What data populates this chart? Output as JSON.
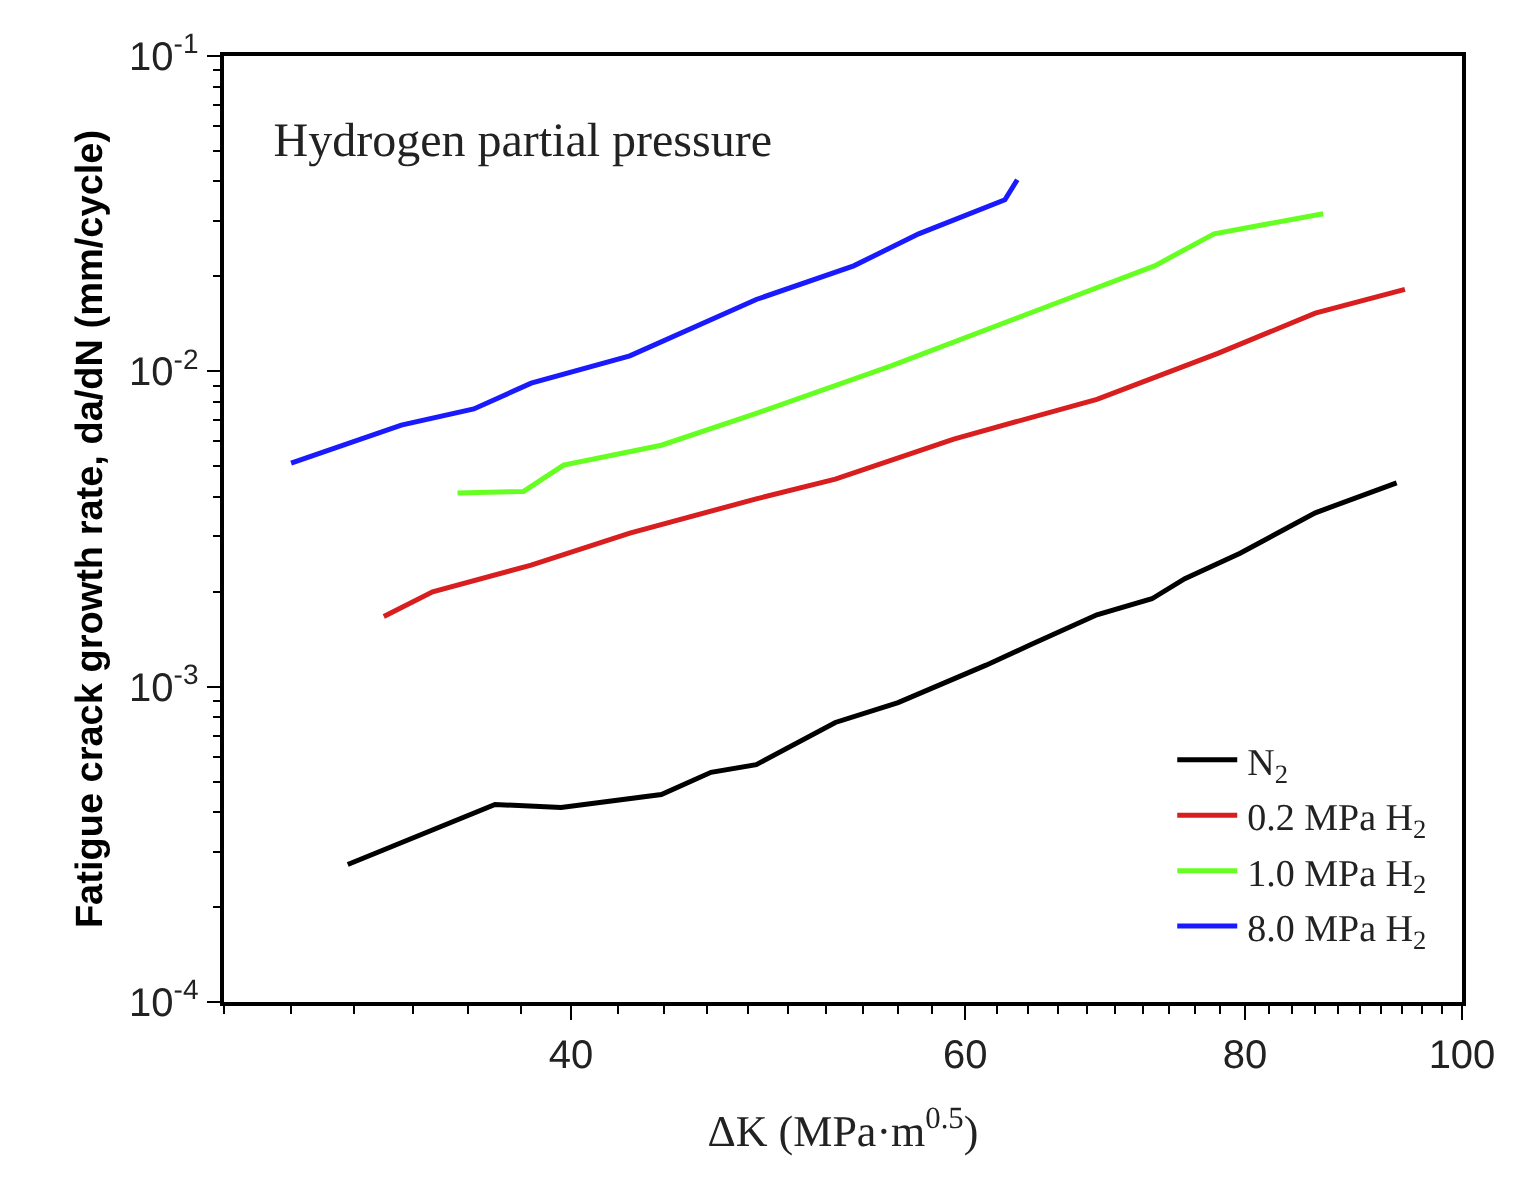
{
  "chart_data": {
    "type": "line",
    "title": "Hydrogen partial pressure",
    "xlabel": "ΔK (MPa·m$^{0.5}$)",
    "ylabel": "Fatigue crack growth rate, da/dN (mm/cycle)",
    "log": "xy",
    "xlim": [
      28,
      100
    ],
    "xticks": [
      40,
      60,
      80,
      100
    ],
    "ylim": [
      0.0001,
      0.1
    ],
    "yticks": [
      {
        "value": 0.0001,
        "label": "10$^{-4}$"
      },
      {
        "value": 0.001,
        "label": "10$^{-3}$"
      },
      {
        "value": 0.01,
        "label": "10$^{-2}$"
      },
      {
        "value": 0.1,
        "label": "10$^{-1}$"
      }
    ],
    "grid": false,
    "legend": "bottom right",
    "marker": "none",
    "line_style": "solid",
    "series": [
      {
        "name": "N$_{2}$",
        "color": "#000000",
        "x": [
          31.8,
          37.0,
          39.6,
          43.9,
          46.2,
          48.4,
          52.5,
          56.0,
          61.3,
          64.2,
          68.7,
          72.7,
          75.2,
          79.6,
          86.0,
          93.5
        ],
        "values": [
          0.000273,
          0.000423,
          0.000414,
          0.000455,
          0.000535,
          0.000566,
          0.00077,
          0.00089,
          0.00117,
          0.00136,
          0.00169,
          0.0019,
          0.0022,
          0.00265,
          0.00356,
          0.00443
        ]
      },
      {
        "name": "0.2 MPa H$_{2}$",
        "color": "#d81e1e",
        "x": [
          33.0,
          34.7,
          38.4,
          42.5,
          48.4,
          52.5,
          59.3,
          68.7,
          77.8,
          86.0,
          94.3
        ],
        "values": [
          0.00167,
          0.002,
          0.00243,
          0.00307,
          0.00394,
          0.00455,
          0.0061,
          0.00815,
          0.0114,
          0.0153,
          0.0182
        ]
      },
      {
        "name": "1.0 MPa H$_{2}$",
        "color": "#66ff22",
        "x": [
          35.6,
          38.1,
          39.7,
          43.9,
          48.4,
          55.6,
          65.5,
          72.9,
          77.5,
          86.7
        ],
        "values": [
          0.00411,
          0.00416,
          0.00504,
          0.00583,
          0.00736,
          0.0104,
          0.0162,
          0.0216,
          0.0273,
          0.0316
        ]
      },
      {
        "name": "8.0 MPa H$_{2}$",
        "color": "#1a1aff",
        "x": [
          30.0,
          33.6,
          36.2,
          38.4,
          42.5,
          48.4,
          53.5,
          57.2,
          62.5,
          63.3
        ],
        "values": [
          0.00512,
          0.00675,
          0.0076,
          0.00917,
          0.0112,
          0.0169,
          0.0216,
          0.0273,
          0.035,
          0.0405
        ]
      }
    ]
  }
}
